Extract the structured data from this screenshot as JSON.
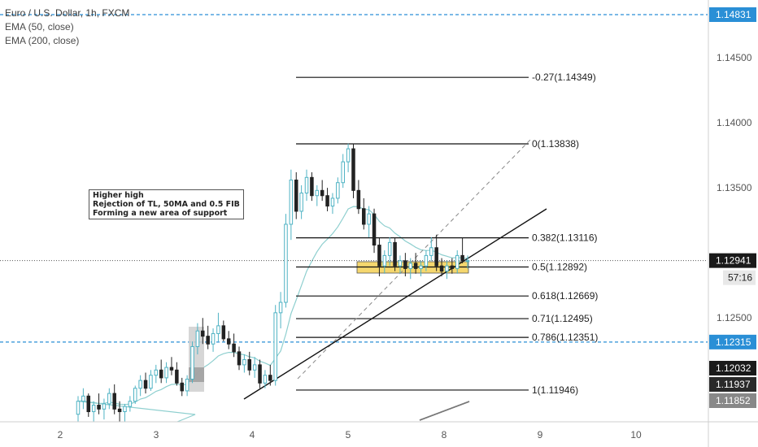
{
  "legend": {
    "title": "Euro / U.S. Dollar, 1h, FXCM",
    "ema50": "EMA (50, close)",
    "ema200": "EMA (200, close)"
  },
  "note": {
    "line1": "Higher high",
    "line2": "Rejection of TL, 50MA and 0.5 FIB",
    "line3": "Forming a new area of support"
  },
  "colors": {
    "up": "#4fb3c4",
    "down": "#222222",
    "ema50": "#8ecfcf",
    "ema200": "#777777",
    "dash_line": "#2a8fd6",
    "zone_fill": "#f5d76e",
    "current_price_bg": "#1a1a1a",
    "axis_label_bg": "#888888",
    "blue_label_bg": "#2a8fd6"
  },
  "chart_data": {
    "type": "candlestick",
    "symbol": "Euro / U.S. Dollar",
    "timeframe": "1h",
    "x_ticks": [
      "2",
      "3",
      "4",
      "5",
      "8",
      "9",
      "10"
    ],
    "y_ticks": [
      "1.14500",
      "1.14000",
      "1.13500",
      "1.12500"
    ],
    "fib_levels": [
      {
        "label": "-0.27(1.14349)",
        "price": 1.14349
      },
      {
        "label": "0(1.13838)",
        "price": 1.13838
      },
      {
        "label": "0.382(1.13116)",
        "price": 1.13116
      },
      {
        "label": "0.5(1.12892)",
        "price": 1.12892
      },
      {
        "label": "0.618(1.12669)",
        "price": 1.12669
      },
      {
        "label": "0.71(1.12495)",
        "price": 1.12495
      },
      {
        "label": "0.786(1.12351)",
        "price": 1.12351
      },
      {
        "label": "1(1.11946)",
        "price": 1.11946
      }
    ],
    "horizontal_lines": [
      {
        "price": 1.14831,
        "label": "1.14831"
      },
      {
        "price": 1.12315,
        "label": "1.12315"
      }
    ],
    "current_price": {
      "price": 1.12941,
      "label": "1.12941",
      "countdown": "57:16"
    },
    "other_price_labels": [
      {
        "price": 1.12032,
        "label": "1.12032"
      },
      {
        "price": 1.11937,
        "label": "1.11937"
      },
      {
        "price": 1.11852,
        "label": "1.11852"
      }
    ],
    "candles": [
      [
        1.1176,
        1.119,
        1.117,
        1.1186
      ],
      [
        1.1186,
        1.1196,
        1.118,
        1.119
      ],
      [
        1.119,
        1.1192,
        1.1174,
        1.1178
      ],
      [
        1.1178,
        1.1186,
        1.117,
        1.1183
      ],
      [
        1.1183,
        1.1192,
        1.1176,
        1.118
      ],
      [
        1.118,
        1.1188,
        1.1172,
        1.1184
      ],
      [
        1.1184,
        1.1196,
        1.118,
        1.1192
      ],
      [
        1.1192,
        1.1199,
        1.1176,
        1.118
      ],
      [
        1.118,
        1.1186,
        1.117,
        1.1178
      ],
      [
        1.1178,
        1.1184,
        1.117,
        1.1182
      ],
      [
        1.1182,
        1.119,
        1.1178,
        1.1186
      ],
      [
        1.1186,
        1.1198,
        1.1184,
        1.1196
      ],
      [
        1.1196,
        1.1206,
        1.119,
        1.1202
      ],
      [
        1.1202,
        1.1208,
        1.1192,
        1.1196
      ],
      [
        1.1196,
        1.121,
        1.1194,
        1.1206
      ],
      [
        1.1206,
        1.1214,
        1.12,
        1.121
      ],
      [
        1.121,
        1.1218,
        1.12,
        1.1204
      ],
      [
        1.1204,
        1.1216,
        1.12,
        1.1212
      ],
      [
        1.1212,
        1.122,
        1.1206,
        1.121
      ],
      [
        1.121,
        1.1216,
        1.1198,
        1.12
      ],
      [
        1.12,
        1.1204,
        1.119,
        1.1194
      ],
      [
        1.1194,
        1.1206,
        1.119,
        1.1203
      ],
      [
        1.1203,
        1.1232,
        1.12,
        1.1228
      ],
      [
        1.1228,
        1.1246,
        1.1222,
        1.124
      ],
      [
        1.124,
        1.125,
        1.123,
        1.1236
      ],
      [
        1.1236,
        1.1244,
        1.1226,
        1.123
      ],
      [
        1.123,
        1.1242,
        1.1224,
        1.1238
      ],
      [
        1.1238,
        1.1254,
        1.1232,
        1.1244
      ],
      [
        1.1244,
        1.1248,
        1.1232,
        1.1234
      ],
      [
        1.1234,
        1.124,
        1.1226,
        1.123
      ],
      [
        1.123,
        1.1238,
        1.122,
        1.1224
      ],
      [
        1.1224,
        1.1228,
        1.121,
        1.1214
      ],
      [
        1.1214,
        1.1222,
        1.1208,
        1.1218
      ],
      [
        1.1218,
        1.1224,
        1.1206,
        1.121
      ],
      [
        1.121,
        1.122,
        1.1204,
        1.1214
      ],
      [
        1.1214,
        1.1218,
        1.1196,
        1.12
      ],
      [
        1.12,
        1.121,
        1.1196,
        1.1206
      ],
      [
        1.1206,
        1.1214,
        1.1198,
        1.1202
      ],
      [
        1.1202,
        1.126,
        1.1198,
        1.1254
      ],
      [
        1.1254,
        1.127,
        1.1242,
        1.1262
      ],
      [
        1.1262,
        1.133,
        1.1258,
        1.1322
      ],
      [
        1.1322,
        1.1364,
        1.131,
        1.1356
      ],
      [
        1.1356,
        1.1362,
        1.1326,
        1.1332
      ],
      [
        1.1332,
        1.1352,
        1.1326,
        1.1346
      ],
      [
        1.1346,
        1.1364,
        1.134,
        1.1358
      ],
      [
        1.1358,
        1.1362,
        1.134,
        1.1344
      ],
      [
        1.1344,
        1.1352,
        1.1336,
        1.1348
      ],
      [
        1.1348,
        1.1356,
        1.134,
        1.1344
      ],
      [
        1.1344,
        1.135,
        1.1332,
        1.1336
      ],
      [
        1.1336,
        1.1346,
        1.133,
        1.1342
      ],
      [
        1.1342,
        1.1358,
        1.1338,
        1.1354
      ],
      [
        1.1354,
        1.1376,
        1.135,
        1.137
      ],
      [
        1.137,
        1.1384,
        1.1362,
        1.138
      ],
      [
        1.138,
        1.1384,
        1.1342,
        1.1348
      ],
      [
        1.1348,
        1.1356,
        1.133,
        1.1334
      ],
      [
        1.1334,
        1.1342,
        1.1318,
        1.1322
      ],
      [
        1.1322,
        1.1336,
        1.1312,
        1.133
      ],
      [
        1.133,
        1.1334,
        1.13,
        1.1306
      ],
      [
        1.1306,
        1.1312,
        1.1282,
        1.129
      ],
      [
        1.129,
        1.1302,
        1.1284,
        1.1298
      ],
      [
        1.1298,
        1.1312,
        1.129,
        1.1308
      ],
      [
        1.1308,
        1.1312,
        1.1286,
        1.129
      ],
      [
        1.129,
        1.1298,
        1.1284,
        1.1294
      ],
      [
        1.1294,
        1.13,
        1.1282,
        1.1288
      ],
      [
        1.1288,
        1.1296,
        1.128,
        1.1292
      ],
      [
        1.1292,
        1.13,
        1.1284,
        1.1288
      ],
      [
        1.1288,
        1.1294,
        1.1282,
        1.129
      ],
      [
        1.129,
        1.1302,
        1.1286,
        1.1298
      ],
      [
        1.1298,
        1.1312,
        1.1294,
        1.1304
      ],
      [
        1.1304,
        1.1314,
        1.1286,
        1.129
      ],
      [
        1.129,
        1.1296,
        1.1282,
        1.1286
      ],
      [
        1.1286,
        1.1294,
        1.128,
        1.129
      ],
      [
        1.129,
        1.1296,
        1.1284,
        1.1288
      ],
      [
        1.1288,
        1.1302,
        1.1284,
        1.1298
      ],
      [
        1.1298,
        1.1312,
        1.1292,
        1.1294
      ],
      [
        1.1294,
        1.1298,
        1.1288,
        1.1294
      ]
    ]
  }
}
